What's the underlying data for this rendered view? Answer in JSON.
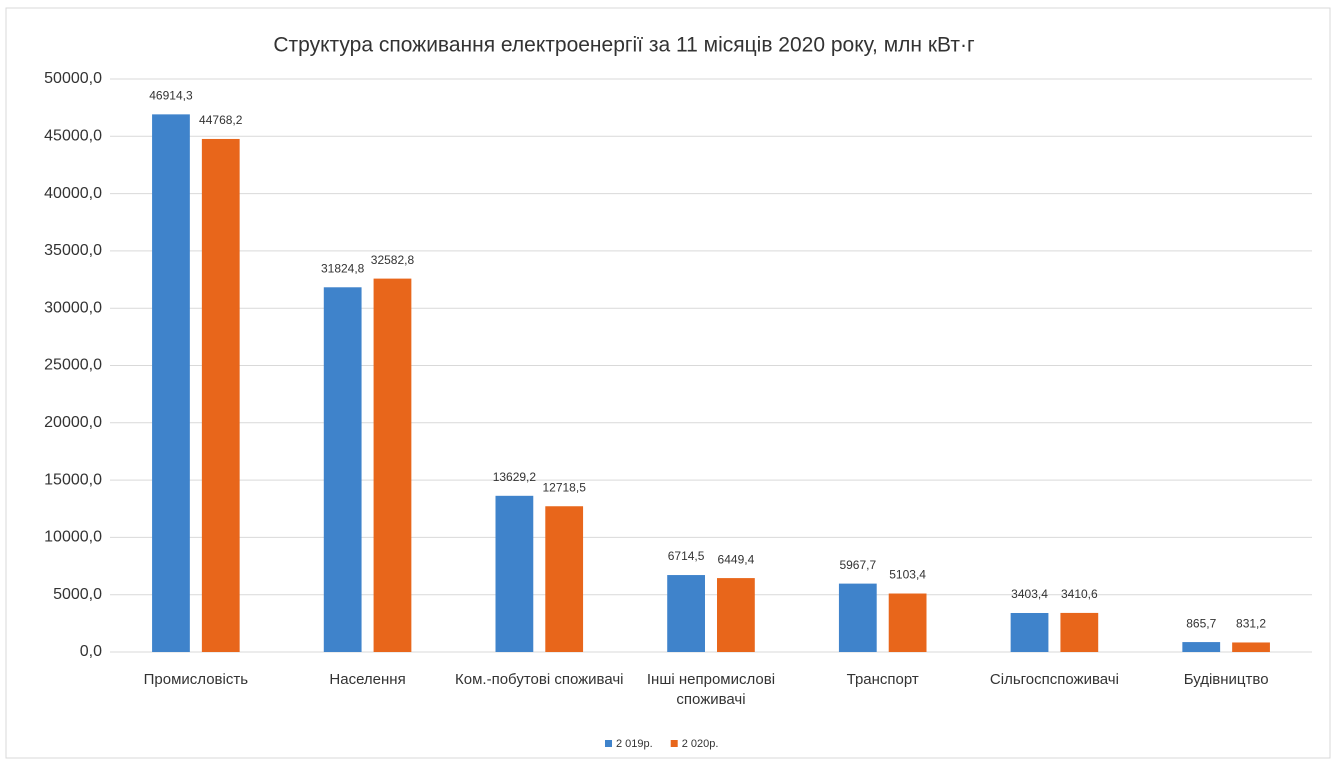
{
  "chart_data": {
    "type": "bar",
    "title": "Структура споживання електроенергії за 11 місяців  2020 року, млн кВт·г",
    "categories": [
      "Промисловість",
      "Населення",
      "Ком.-побутові споживачі",
      "Інші непромислові споживачі",
      "Транспорт",
      "Сільгоспспоживачі",
      "Будівництво"
    ],
    "series": [
      {
        "name": "2 019р.",
        "color": "#3f83cb",
        "values": [
          46914.3,
          31824.8,
          13629.2,
          6714.5,
          5967.7,
          3403.4,
          865.7
        ],
        "value_labels": [
          "46914,3",
          "31824,8",
          "13629,2",
          "6714,5",
          "5967,7",
          "3403,4",
          "865,7"
        ]
      },
      {
        "name": "2 020р.",
        "color": "#e8661b",
        "values": [
          44768.2,
          32582.8,
          12718.5,
          6449.4,
          5103.4,
          3410.6,
          831.2
        ],
        "value_labels": [
          "44768,2",
          "32582,8",
          "12718,5",
          "6449,4",
          "5103,4",
          "3410,6",
          "831,2"
        ]
      }
    ],
    "ylim": [
      0,
      50000
    ],
    "yticks": [
      {
        "value": 0,
        "label": "0,0"
      },
      {
        "value": 5000,
        "label": "5000,0"
      },
      {
        "value": 10000,
        "label": "10000,0"
      },
      {
        "value": 15000,
        "label": "15000,0"
      },
      {
        "value": 20000,
        "label": "20000,0"
      },
      {
        "value": 25000,
        "label": "25000,0"
      },
      {
        "value": 30000,
        "label": "30000,0"
      },
      {
        "value": 35000,
        "label": "35000,0"
      },
      {
        "value": 40000,
        "label": "40000,0"
      },
      {
        "value": 45000,
        "label": "45000,0"
      },
      {
        "value": 50000,
        "label": "50000,0"
      }
    ],
    "grid": true,
    "legend": "bottom"
  }
}
